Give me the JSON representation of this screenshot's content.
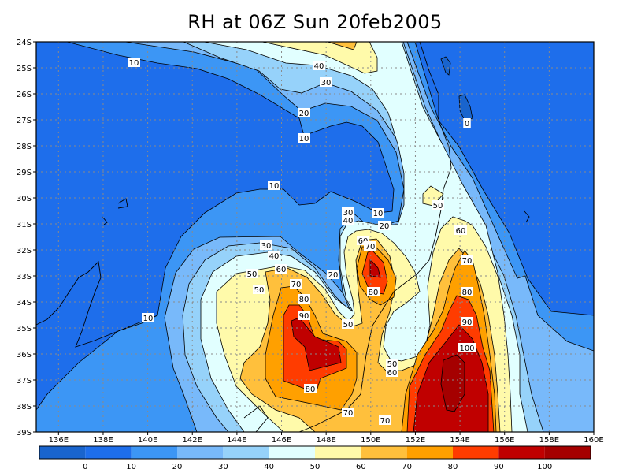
{
  "title": "RH at 06Z Sun 20feb2005",
  "map": {
    "variable": "RH",
    "lat_labels": [
      "24S",
      "25S",
      "26S",
      "27S",
      "28S",
      "29S",
      "30S",
      "31S",
      "32S",
      "33S",
      "34S",
      "35S",
      "36S",
      "37S",
      "38S",
      "39S"
    ],
    "lon_labels": [
      "136E",
      "138E",
      "140E",
      "142E",
      "144E",
      "146E",
      "148E",
      "150E",
      "152E",
      "154E",
      "156E",
      "158E",
      "160E"
    ],
    "lat_range": [
      -39,
      -24
    ],
    "lon_range": [
      135,
      160
    ],
    "grid": true,
    "contour_labels": [
      "10",
      "40",
      "30",
      "20",
      "10",
      "0",
      "10",
      "50",
      "30",
      "40",
      "10",
      "20",
      "60",
      "60",
      "70",
      "30",
      "40",
      "70",
      "20",
      "50",
      "60",
      "50",
      "70",
      "80",
      "80",
      "80",
      "90",
      "10",
      "50",
      "90",
      "100",
      "50",
      "60",
      "80",
      "70",
      "70"
    ]
  },
  "colorbar": {
    "labels": [
      "0",
      "10",
      "20",
      "30",
      "40",
      "50",
      "60",
      "70",
      "80",
      "90",
      "100"
    ],
    "colors": [
      "#1964cd",
      "#1e6eeb",
      "#3c96f5",
      "#78b9fa",
      "#96d2fa",
      "#e1ffff",
      "#fffaaa",
      "#ffc03c",
      "#ffa000",
      "#ff3c00",
      "#c00000",
      "#a50000"
    ]
  }
}
